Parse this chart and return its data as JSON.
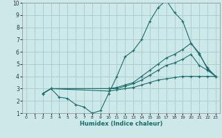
{
  "xlabel": "Humidex (Indice chaleur)",
  "xlim": [
    -0.5,
    23.5
  ],
  "ylim": [
    1,
    10
  ],
  "xticks": [
    0,
    1,
    2,
    3,
    4,
    5,
    6,
    7,
    8,
    9,
    10,
    11,
    12,
    13,
    14,
    15,
    16,
    17,
    18,
    19,
    20,
    21,
    22,
    23
  ],
  "yticks": [
    1,
    2,
    3,
    4,
    5,
    6,
    7,
    8,
    9,
    10
  ],
  "background_color": "#cce8e8",
  "grid_color": "#aacece",
  "line_color": "#1a6b6b",
  "lines": [
    {
      "x": [
        2,
        3,
        4,
        5,
        6,
        7,
        8,
        9,
        10,
        11,
        12,
        13,
        14,
        15,
        16,
        17,
        18,
        19,
        20,
        21,
        22,
        23
      ],
      "y": [
        2.6,
        3.0,
        2.3,
        2.2,
        1.7,
        1.5,
        1.0,
        1.2,
        2.6,
        4.0,
        5.6,
        6.1,
        7.0,
        8.5,
        9.6,
        10.2,
        9.2,
        8.5,
        6.7,
        5.9,
        4.6,
        4.0
      ]
    },
    {
      "x": [
        2,
        3,
        10,
        11,
        12,
        13,
        14,
        15,
        16,
        17,
        18,
        19,
        20,
        21,
        22,
        23
      ],
      "y": [
        2.6,
        3.0,
        3.0,
        3.1,
        3.3,
        3.5,
        4.0,
        4.5,
        5.0,
        5.5,
        5.8,
        6.2,
        6.7,
        5.8,
        4.7,
        4.0
      ]
    },
    {
      "x": [
        2,
        3,
        10,
        11,
        12,
        13,
        14,
        15,
        16,
        17,
        18,
        19,
        20,
        21,
        22,
        23
      ],
      "y": [
        2.6,
        3.0,
        3.0,
        3.0,
        3.2,
        3.4,
        3.7,
        4.1,
        4.5,
        4.9,
        5.1,
        5.4,
        5.8,
        4.9,
        4.5,
        4.0
      ]
    },
    {
      "x": [
        2,
        3,
        10,
        11,
        12,
        13,
        14,
        15,
        16,
        17,
        18,
        19,
        20,
        21,
        22,
        23
      ],
      "y": [
        2.6,
        3.0,
        2.8,
        2.9,
        3.0,
        3.1,
        3.3,
        3.5,
        3.7,
        3.8,
        3.9,
        4.0,
        4.0,
        4.0,
        4.0,
        4.0
      ]
    }
  ]
}
